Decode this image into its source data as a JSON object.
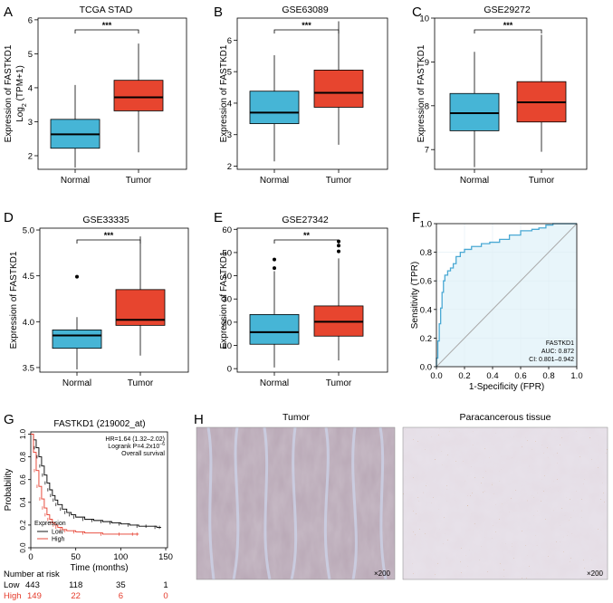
{
  "colors": {
    "normal": "#46b5d6",
    "tumor": "#e7452f",
    "roc_line": "#4aa9d4",
    "roc_fill": "#e8f5fa",
    "low_line": "#000000",
    "high_line": "#e53a2a",
    "high_text": "#e53a2a"
  },
  "panels": {
    "A": {
      "letter": "A"
    },
    "B": {
      "letter": "B"
    },
    "C": {
      "letter": "C"
    },
    "D": {
      "letter": "D"
    },
    "E": {
      "letter": "E"
    },
    "F": {
      "letter": "F"
    },
    "G": {
      "letter": "G"
    },
    "H": {
      "letter": "H"
    }
  },
  "chart_data": [
    {
      "id": "A",
      "type": "box",
      "title": "TCGA STAD",
      "ylabel_line1": "Expression of FASTKD1",
      "ylabel_line2": "Log",
      "ylabel_sub": "2",
      "ylabel_rest": " (TPM+1)",
      "ylim": [
        1.6,
        6.05
      ],
      "yticks": [
        2,
        3,
        4,
        5,
        6
      ],
      "significance": "***",
      "categories": [
        "Normal",
        "Tumor"
      ],
      "boxes": [
        {
          "group": "Normal",
          "min": 1.65,
          "q1": 2.22,
          "median": 2.63,
          "q3": 3.07,
          "max": 4.08,
          "outliers": []
        },
        {
          "group": "Tumor",
          "min": 2.1,
          "q1": 3.32,
          "median": 3.72,
          "q3": 4.22,
          "max": 5.3,
          "outliers": []
        }
      ]
    },
    {
      "id": "B",
      "type": "box",
      "title": "GSE63089",
      "ylabel_line1": "Expression of FASTKD1",
      "ylim": [
        1.9,
        6.7
      ],
      "yticks": [
        2,
        3,
        4,
        5,
        6
      ],
      "significance": "***",
      "categories": [
        "Normal",
        "Tumor"
      ],
      "boxes": [
        {
          "group": "Normal",
          "min": 2.15,
          "q1": 3.35,
          "median": 3.7,
          "q3": 4.38,
          "max": 5.52,
          "outliers": []
        },
        {
          "group": "Tumor",
          "min": 2.68,
          "q1": 3.87,
          "median": 4.33,
          "q3": 5.05,
          "max": 6.6,
          "outliers": []
        }
      ]
    },
    {
      "id": "C",
      "type": "box",
      "title": "GSE29272",
      "ylabel_line1": "Expression of FASTKD1",
      "ylim": [
        6.55,
        10.0
      ],
      "yticks": [
        7,
        8,
        9,
        10
      ],
      "significance": "***",
      "categories": [
        "Normal",
        "Tumor"
      ],
      "boxes": [
        {
          "group": "Normal",
          "min": 6.6,
          "q1": 7.43,
          "median": 7.83,
          "q3": 8.28,
          "max": 9.23,
          "outliers": []
        },
        {
          "group": "Tumor",
          "min": 6.95,
          "q1": 7.63,
          "median": 8.08,
          "q3": 8.55,
          "max": 9.62,
          "outliers": []
        }
      ]
    },
    {
      "id": "D",
      "type": "box",
      "title": "GSE33335",
      "ylabel_line1": "Expression of FASTKD1",
      "ylim": [
        3.45,
        5.02
      ],
      "yticks": [
        3.5,
        4.0,
        4.5,
        5.0
      ],
      "ytick_labels": [
        "3.5",
        "4.0",
        "4.5",
        "5.0"
      ],
      "significance": "***",
      "categories": [
        "Normal",
        "Tumor"
      ],
      "boxes": [
        {
          "group": "Normal",
          "min": 3.48,
          "q1": 3.71,
          "median": 3.85,
          "q3": 3.91,
          "max": 4.05,
          "outliers": [
            4.49
          ]
        },
        {
          "group": "Tumor",
          "min": 3.63,
          "q1": 3.96,
          "median": 4.02,
          "q3": 4.35,
          "max": 4.93,
          "outliers": []
        }
      ]
    },
    {
      "id": "E",
      "type": "box",
      "title": "GSE27342",
      "ylabel_line1": "Expression of FASTKD1",
      "ylim": [
        -1.5,
        60.5
      ],
      "yticks": [
        0,
        10,
        20,
        30,
        40,
        50,
        60
      ],
      "significance": "**",
      "categories": [
        "Normal",
        "Tumor"
      ],
      "boxes": [
        {
          "group": "Normal",
          "min": 0.5,
          "q1": 10.5,
          "median": 15.7,
          "q3": 23.3,
          "max": 42.0,
          "outliers": [
            43.3,
            47.0
          ]
        },
        {
          "group": "Tumor",
          "min": 3.5,
          "q1": 14.0,
          "median": 20.2,
          "q3": 27.0,
          "max": 47.5,
          "outliers": [
            50.5,
            53.0,
            54.8
          ]
        }
      ]
    },
    {
      "id": "F",
      "type": "line",
      "subtype": "roc",
      "xlabel": "1-Specificity (FPR)",
      "ylabel": "Sensitivity (TPR)",
      "xlim": [
        0,
        1
      ],
      "ylim": [
        0,
        1
      ],
      "xticks": [
        0,
        0.2,
        0.4,
        0.6,
        0.8,
        1.0
      ],
      "xtick_labels": [
        "0.0",
        "0.2",
        "0.4",
        "0.6",
        "0.8",
        "1.0"
      ],
      "yticks": [
        0,
        0.2,
        0.4,
        0.6,
        0.8,
        1.0
      ],
      "ytick_labels": [
        "0.0",
        "0.2",
        "0.4",
        "0.6",
        "0.8",
        "1.0"
      ],
      "legend": [
        "FASTKD1",
        "AUC: 0.872",
        "CI: 0.801–0.942"
      ],
      "fpr": [
        0,
        0,
        0.01,
        0.01,
        0.02,
        0.02,
        0.03,
        0.03,
        0.04,
        0.04,
        0.05,
        0.05,
        0.06,
        0.06,
        0.08,
        0.08,
        0.1,
        0.1,
        0.12,
        0.12,
        0.14,
        0.14,
        0.17,
        0.17,
        0.2,
        0.2,
        0.25,
        0.25,
        0.32,
        0.32,
        0.38,
        0.38,
        0.45,
        0.45,
        0.52,
        0.52,
        0.6,
        0.6,
        0.68,
        0.68,
        0.73,
        0.73,
        0.78,
        0.78,
        0.83,
        0.83,
        1.0
      ],
      "tpr": [
        0,
        0.06,
        0.06,
        0.18,
        0.18,
        0.3,
        0.3,
        0.41,
        0.41,
        0.52,
        0.52,
        0.6,
        0.6,
        0.64,
        0.64,
        0.67,
        0.67,
        0.69,
        0.69,
        0.72,
        0.72,
        0.77,
        0.77,
        0.8,
        0.8,
        0.82,
        0.82,
        0.84,
        0.84,
        0.86,
        0.86,
        0.87,
        0.87,
        0.89,
        0.89,
        0.92,
        0.92,
        0.95,
        0.95,
        0.96,
        0.96,
        0.97,
        0.97,
        0.99,
        0.99,
        1.0,
        1.0
      ]
    },
    {
      "id": "G",
      "type": "line",
      "subtype": "kaplan-meier",
      "title": "FASTKD1 (219002_at)",
      "xlabel": "Time (months)",
      "ylabel": "Probability",
      "xlim": [
        0,
        152
      ],
      "ylim": [
        0,
        1.02
      ],
      "xticks": [
        0,
        50,
        100,
        150
      ],
      "yticks": [
        0,
        0.2,
        0.4,
        0.6,
        0.8,
        1.0
      ],
      "ytick_labels": [
        "0.0",
        "0.2",
        "0.4",
        "0.6",
        "0.8",
        "1.0"
      ],
      "annotations": [
        "HR=1.64 (1.32–2.02)",
        "Logrank P=4.2x10",
        "−6",
        "Overall survival"
      ],
      "legend_title": "Expression",
      "series": [
        {
          "name": "Low",
          "x": [
            0,
            3,
            6,
            9,
            12,
            15,
            18,
            21,
            24,
            27,
            30,
            35,
            40,
            45,
            50,
            60,
            70,
            80,
            90,
            100,
            110,
            120,
            130,
            140,
            145
          ],
          "y": [
            1.0,
            0.95,
            0.88,
            0.8,
            0.72,
            0.64,
            0.57,
            0.51,
            0.46,
            0.42,
            0.38,
            0.34,
            0.31,
            0.29,
            0.27,
            0.25,
            0.24,
            0.23,
            0.22,
            0.21,
            0.2,
            0.19,
            0.19,
            0.18,
            0.18
          ]
        },
        {
          "name": "High",
          "x": [
            0,
            3,
            6,
            9,
            12,
            15,
            18,
            21,
            24,
            27,
            30,
            35,
            40,
            50,
            60,
            80,
            100,
            115,
            120
          ],
          "y": [
            1.0,
            0.84,
            0.68,
            0.54,
            0.43,
            0.35,
            0.29,
            0.25,
            0.22,
            0.2,
            0.18,
            0.16,
            0.15,
            0.14,
            0.13,
            0.12,
            0.12,
            0.12,
            0.12
          ]
        }
      ],
      "risk_table": {
        "label": "Number at risk",
        "rows": [
          {
            "name": "Low",
            "n": "443",
            "values": [
              "118",
              "35",
              "1"
            ]
          },
          {
            "name": "High",
            "n": "149",
            "values": [
              "22",
              "6",
              "0"
            ]
          }
        ]
      }
    }
  ],
  "histology": {
    "left_title": "Tumor",
    "right_title": "Paracancerous tissue",
    "left_mag": "×200",
    "right_mag": "×200"
  }
}
